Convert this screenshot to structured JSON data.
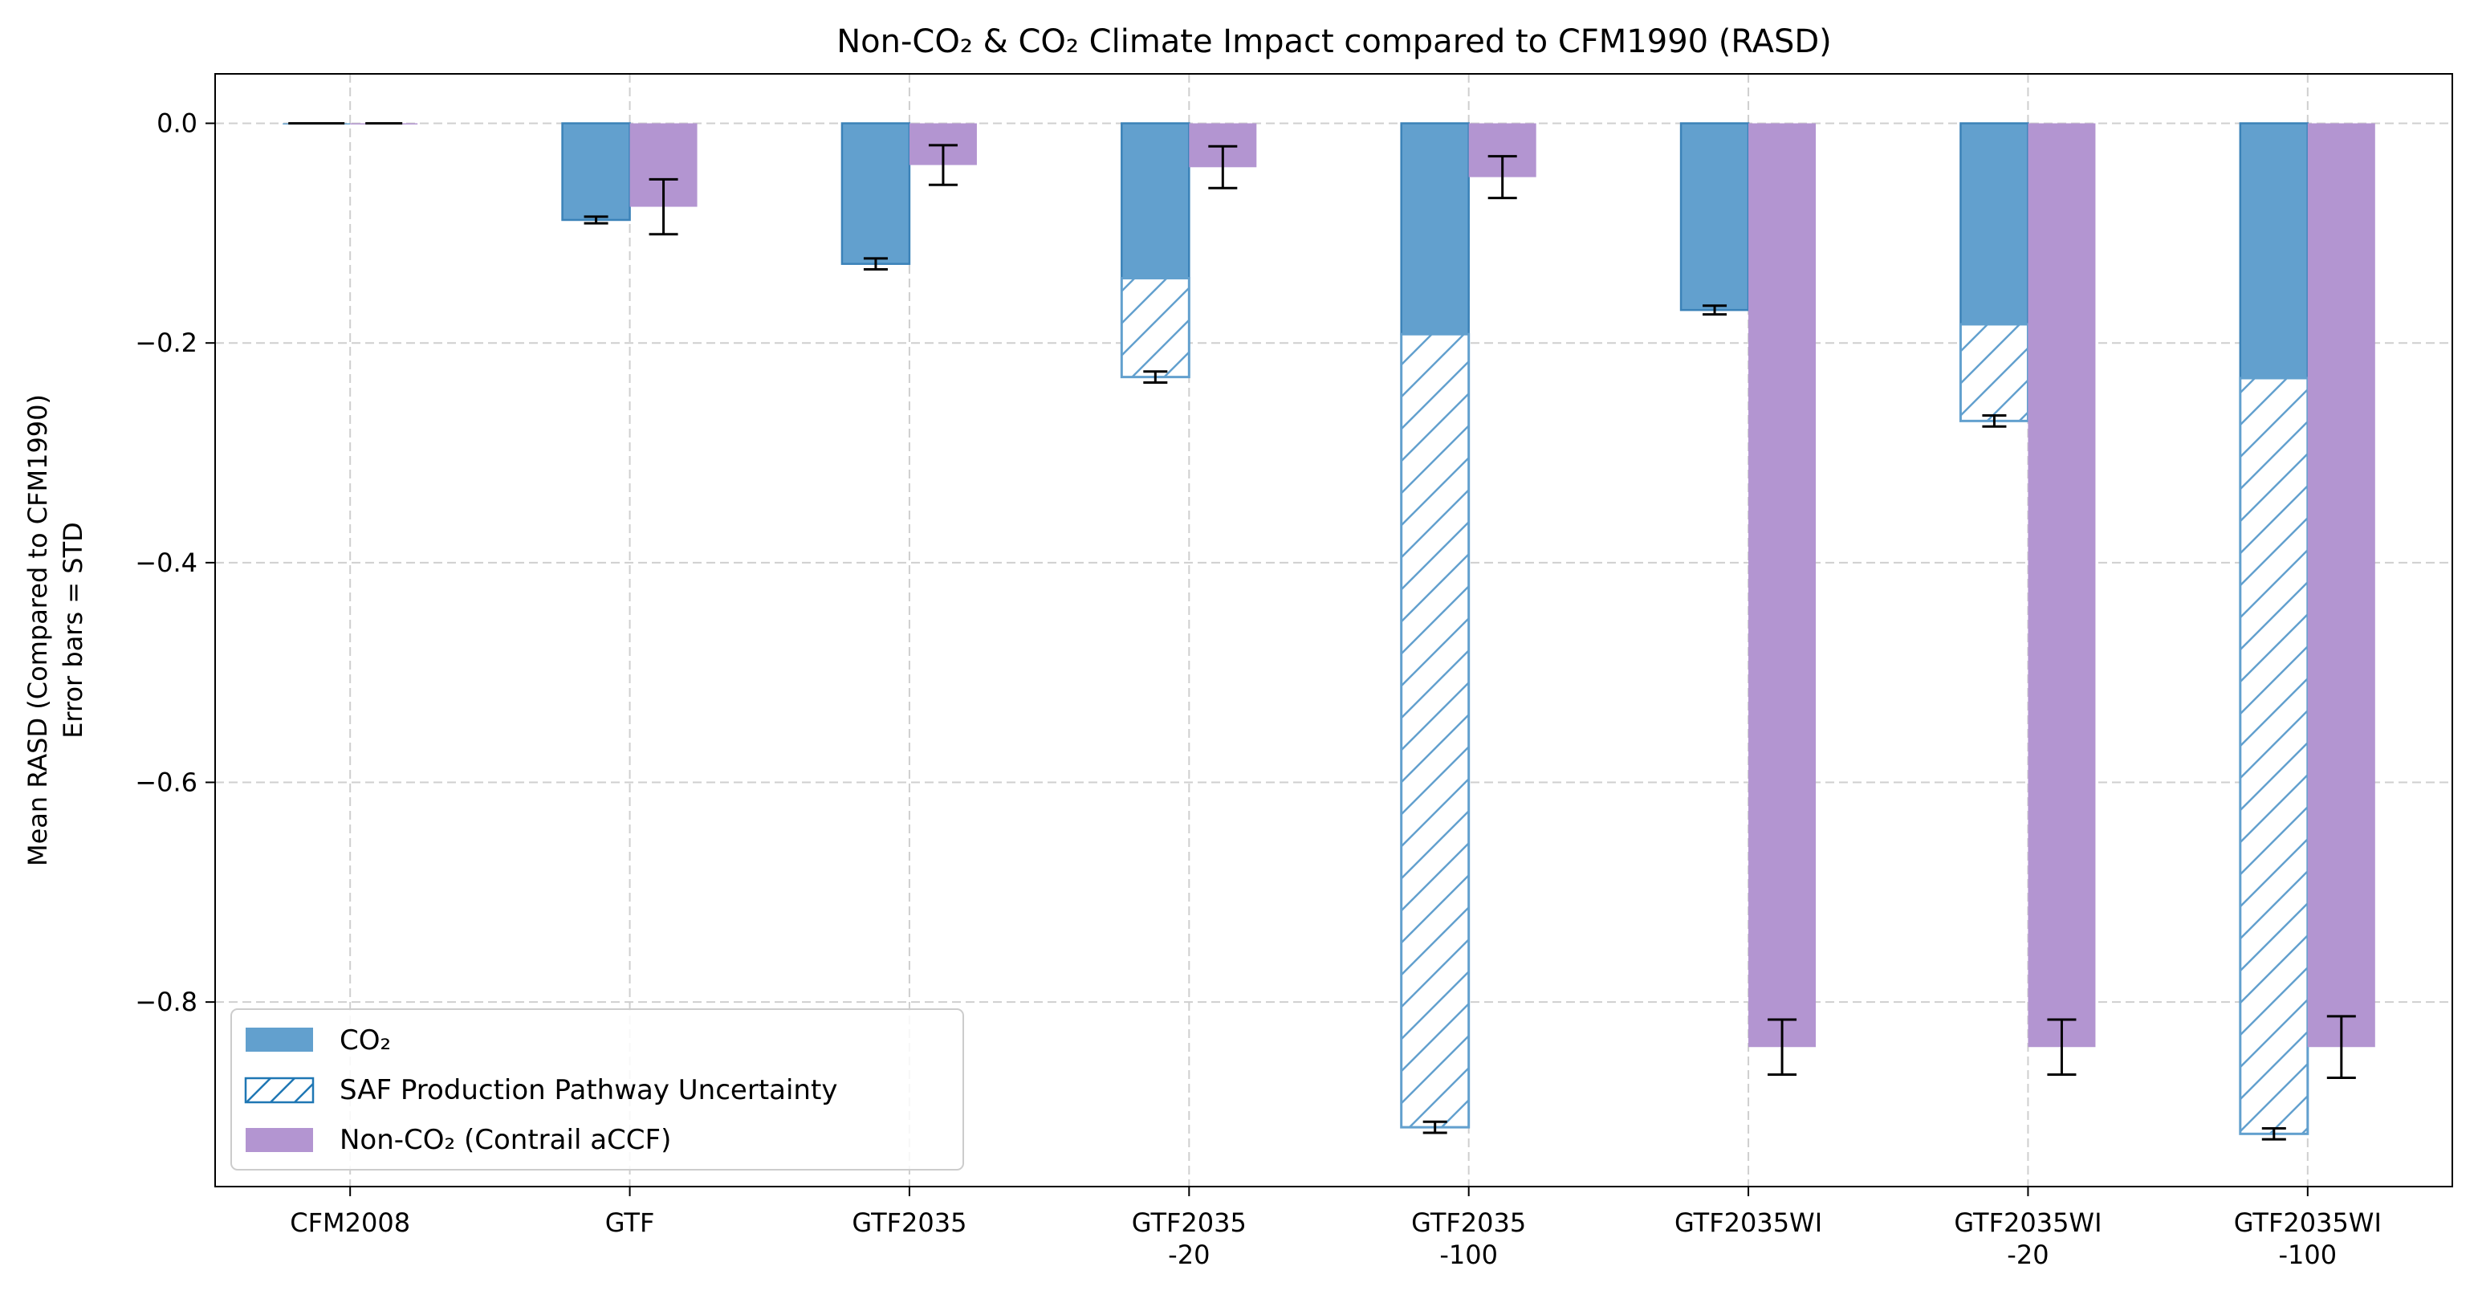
{
  "chart_data": {
    "type": "bar",
    "title": "Non-CO₂ & CO₂ Climate Impact compared to CFM1990 (RASD)",
    "xlabel": "",
    "ylabel": [
      "Mean RASD (Compared to CFM1990)",
      "Error bars = STD"
    ],
    "ylim": [
      -0.968,
      0.045
    ],
    "yticks": [
      0.0,
      -0.2,
      -0.4,
      -0.6,
      -0.8
    ],
    "ytick_labels": [
      "0.0",
      "−0.2",
      "−0.4",
      "−0.6",
      "−0.8"
    ],
    "grid": true,
    "legend_position": "lower-left",
    "categories": [
      [
        "CFM2008"
      ],
      [
        "GTF"
      ],
      [
        "GTF2035"
      ],
      [
        "GTF2035",
        "-20"
      ],
      [
        "GTF2035",
        "-100"
      ],
      [
        "GTF2035WI"
      ],
      [
        "GTF2035WI",
        "-20"
      ],
      [
        "GTF2035WI",
        "-100"
      ]
    ],
    "series": [
      {
        "name": "CO₂",
        "color": "#62a0ce",
        "values": [
          0.0,
          -0.088,
          -0.128,
          -0.141,
          -0.192,
          -0.17,
          -0.183,
          -0.232
        ],
        "std": [
          0.0,
          0.003,
          0.005,
          0.0,
          0.0,
          0.004,
          0.0,
          0.0
        ]
      },
      {
        "name": "SAF Production Pathway Uncertainty",
        "color": "#62a0ce",
        "hatch": "diagonal",
        "bottom": [
          null,
          null,
          null,
          -0.141,
          -0.192,
          null,
          -0.183,
          -0.232
        ],
        "top": [
          null,
          null,
          null,
          -0.231,
          -0.914,
          null,
          -0.271,
          -0.92
        ],
        "std": [
          null,
          null,
          null,
          0.005,
          0.005,
          null,
          0.005,
          0.005
        ]
      },
      {
        "name": "Non-CO₂ (Contrail aCCF)",
        "color": "#b395d1",
        "values": [
          0.0,
          -0.076,
          -0.038,
          -0.04,
          -0.049,
          -0.841,
          -0.841,
          -0.841
        ],
        "std": [
          0.0,
          0.025,
          0.018,
          0.019,
          0.019,
          0.025,
          0.025,
          0.028
        ]
      }
    ]
  }
}
